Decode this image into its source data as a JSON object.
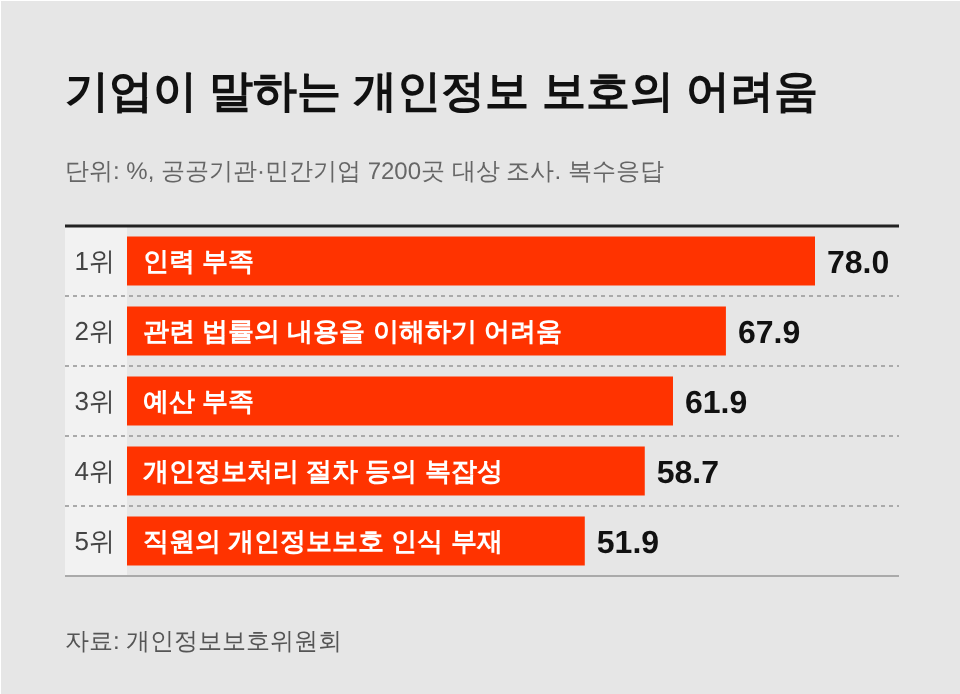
{
  "chart_data": {
    "type": "bar",
    "orientation": "horizontal",
    "title": "기업이 말하는 개인정보 보호의 어려움",
    "subtitle": "단위: %, 공공기관·민간기업 7200곳 대상 조사. 복수응답",
    "categories": [
      "인력 부족",
      "관련 법률의 내용을 이해하기 어려움",
      "예산 부족",
      "개인정보처리 절차 등의 복잡성",
      "직원의 개인정보보호 인식 부재"
    ],
    "values": [
      78.0,
      67.9,
      61.9,
      58.7,
      51.9
    ],
    "value_labels": [
      "78.0",
      "67.9",
      "61.9",
      "58.7",
      "51.9"
    ],
    "color": "#ff3300",
    "annotations": [
      "1위",
      "2위",
      "3위",
      "4위",
      "5위",
      "자료: 개인정보보호위원회"
    ],
    "grid": "y"
  }
}
